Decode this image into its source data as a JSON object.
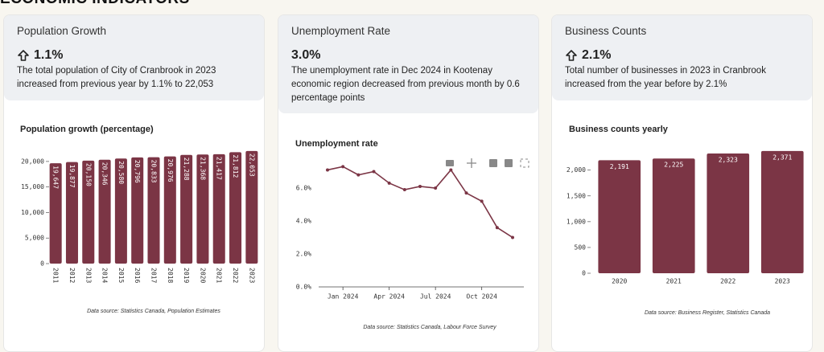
{
  "header": {
    "title": "ECONOMIC INDICATORS"
  },
  "cards": [
    {
      "title": "Population Growth",
      "stat": "1.1%",
      "description": "The total population of City of Cranbrook in 2023 increased from previous year by 1.1% to 22,053"
    },
    {
      "title": "Unemployment Rate",
      "stat": "3.0%",
      "description": "The unemployment rate in Dec 2024 in Kootenay economic region decreased from previous month by 0.6 percentage points"
    },
    {
      "title": "Business Counts",
      "stat": "2.1%",
      "description": "Total number of businesses in 2023 in Cranbrook increased from the year before by 2.1%"
    }
  ],
  "chart_data": [
    {
      "type": "bar",
      "title": "Population growth (percentage)",
      "categories": [
        "2011",
        "2012",
        "2013",
        "2014",
        "2015",
        "2016",
        "2017",
        "2018",
        "2019",
        "2020",
        "2021",
        "2022",
        "2023"
      ],
      "values": [
        19647,
        19877,
        20150,
        20346,
        20580,
        20796,
        20833,
        20976,
        21288,
        21368,
        21417,
        21812,
        22053
      ],
      "value_labels": [
        "19,647",
        "19,877",
        "20,150",
        "20,346",
        "20,580",
        "20,796",
        "20,833",
        "20,976",
        "21,288",
        "21,368",
        "21,417",
        "21,812",
        "22,053"
      ],
      "color": "#7b3545",
      "ylim": [
        0,
        22500
      ],
      "yticks": [
        0,
        {
          "value": 5000,
          "label": "5,000"
        },
        {
          "value": 10000,
          "label": "10,000"
        },
        {
          "value": 15000,
          "label": "15,000"
        },
        {
          "value": 20000,
          "label": "20,000"
        }
      ],
      "source": "Data source: Statistics Canada, Population Estimates"
    },
    {
      "type": "line",
      "title": "Unemployment rate",
      "x": [
        "2023-12",
        "2024-01",
        "2024-02",
        "2024-03",
        "2024-04",
        "2024-05",
        "2024-06",
        "2024-07",
        "2024-08",
        "2024-09",
        "2024-10",
        "2024-11",
        "2024-12"
      ],
      "values": [
        7.1,
        7.3,
        6.8,
        7.0,
        6.3,
        5.9,
        6.1,
        6.0,
        7.1,
        5.7,
        5.2,
        3.6,
        3.0
      ],
      "color": "#7b3545",
      "ylim": [
        0,
        8
      ],
      "yticks": [
        {
          "value": 0,
          "label": "0.0%"
        },
        {
          "value": 2,
          "label": "2.0%"
        },
        {
          "value": 4,
          "label": "4.0%"
        },
        {
          "value": 6,
          "label": "6.0%"
        }
      ],
      "xticks": [
        {
          "value": "2024-01",
          "label": "Jan 2024"
        },
        {
          "value": "2024-04",
          "label": "Apr 2024"
        },
        {
          "value": "2024-07",
          "label": "Jul 2024"
        },
        {
          "value": "2024-10",
          "label": "Oct 2024"
        }
      ],
      "source": "Data source: Statistics Canada, Labour Force Survey"
    },
    {
      "type": "bar",
      "title": "Business counts yearly",
      "categories": [
        "2020",
        "2021",
        "2022",
        "2023"
      ],
      "values": [
        2191,
        2225,
        2323,
        2371
      ],
      "value_labels": [
        "2,191",
        "2,225",
        "2,323",
        "2,371"
      ],
      "color": "#7b3545",
      "ylim": [
        0,
        2400
      ],
      "yticks": [
        0,
        500,
        {
          "value": 1000,
          "label": "1,000"
        },
        {
          "value": 1500,
          "label": "1,500"
        },
        {
          "value": 2000,
          "label": "2,000"
        }
      ],
      "source": "Data source: Business Register, Statistics Canada"
    }
  ]
}
